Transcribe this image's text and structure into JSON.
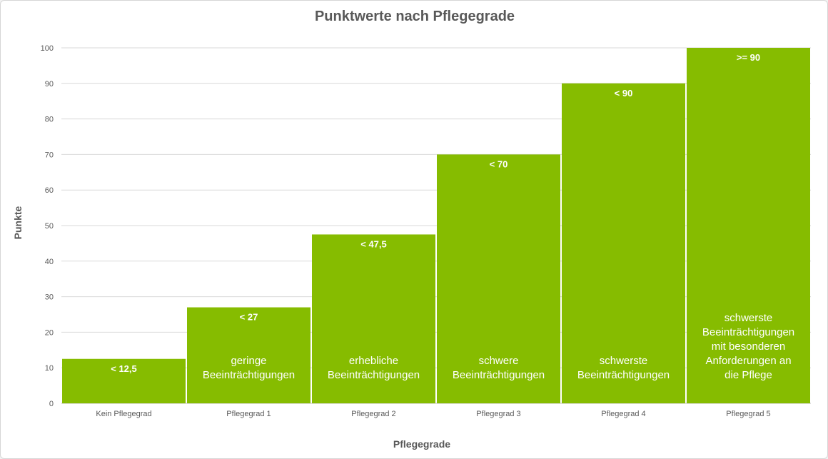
{
  "chart_data": {
    "type": "bar",
    "title": "Punktwerte nach Pflegegrade",
    "xlabel": "Pflegegrade",
    "ylabel": "Punkte",
    "ylim": [
      0,
      100
    ],
    "yticks": [
      0,
      10,
      20,
      30,
      40,
      50,
      60,
      70,
      80,
      90,
      100
    ],
    "grid": true,
    "bar_color": "#86bc00",
    "categories": [
      "Kein Pflegegrad",
      "Pflegegrad 1",
      "Pflegegrad 2",
      "Pflegegrad 3",
      "Pflegegrad 4",
      "Pflegegrad 5"
    ],
    "values": [
      12.5,
      27,
      47.5,
      70,
      90,
      100
    ],
    "value_labels": [
      "< 12,5",
      "< 27",
      "< 47,5",
      "< 70",
      "< 90",
      ">= 90"
    ],
    "descriptions": [
      [],
      [
        "geringe",
        "Beeinträchtigungen"
      ],
      [
        "erhebliche",
        "Beeinträchtigungen"
      ],
      [
        "schwere",
        "Beeinträchtigungen"
      ],
      [
        "schwerste",
        "Beeinträchtigungen"
      ],
      [
        "schwerste",
        "Beeinträchtigungen",
        "mit besonderen",
        "Anforderungen an",
        "die Pflege"
      ]
    ]
  }
}
